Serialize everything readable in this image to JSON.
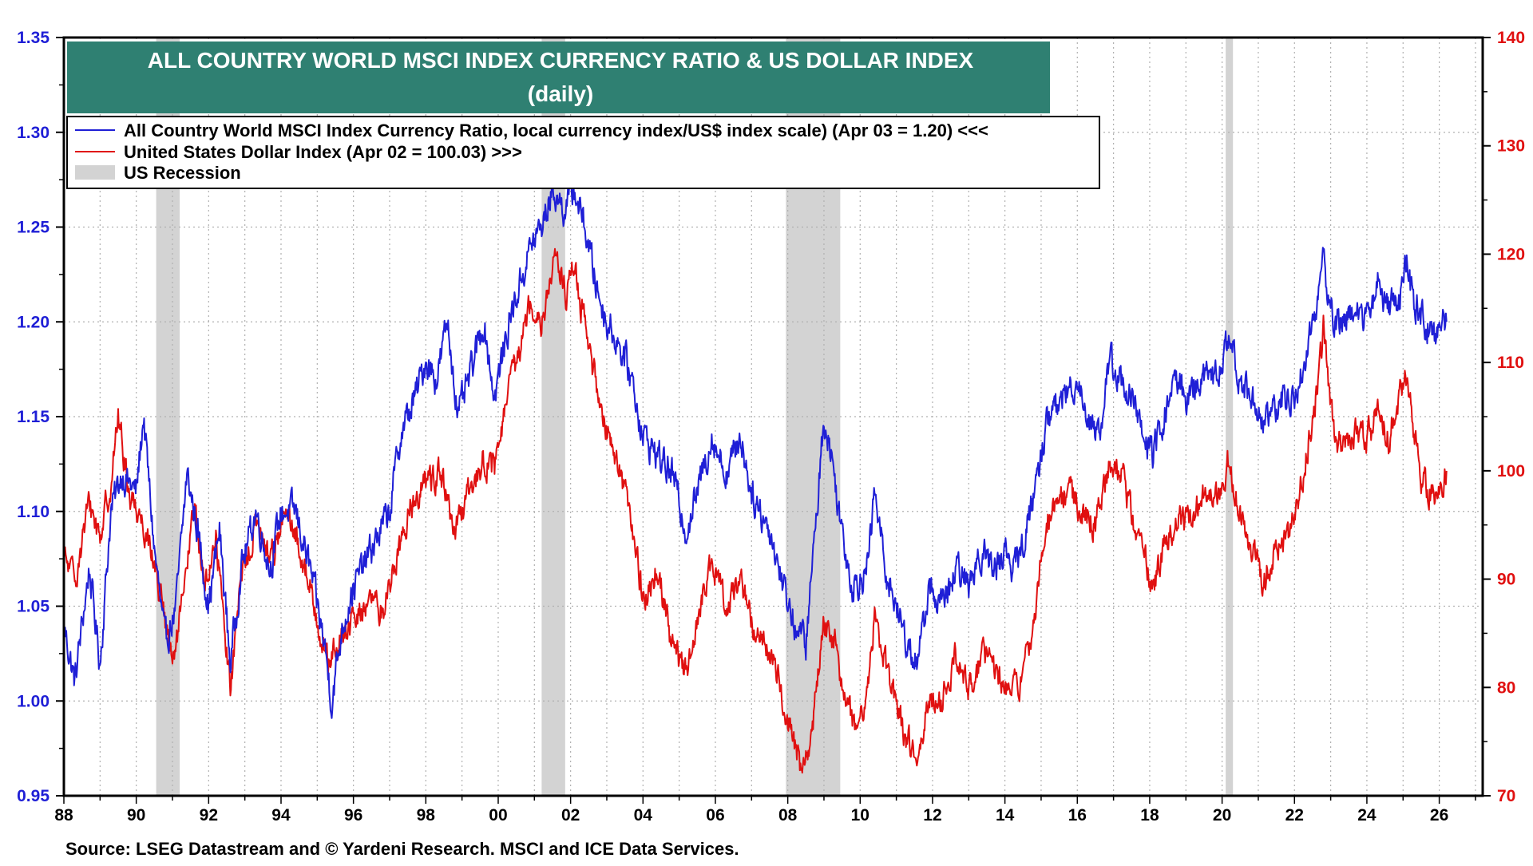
{
  "chart_data": {
    "type": "line",
    "title": "ALL COUNTRY WORLD MSCI INDEX CURRENCY RATIO & US DOLLAR INDEX",
    "subtitle": "(daily)",
    "source": "Source: LSEG Datastream and © Yardeni Research. MSCI and ICE Data Services.",
    "x_range": [
      1988.0,
      2027.2
    ],
    "x_ticks": [
      {
        "value": 1988,
        "label": "88"
      },
      {
        "value": 1990,
        "label": "90"
      },
      {
        "value": 1992,
        "label": "92"
      },
      {
        "value": 1994,
        "label": "94"
      },
      {
        "value": 1996,
        "label": "96"
      },
      {
        "value": 1998,
        "label": "98"
      },
      {
        "value": 2000,
        "label": "00"
      },
      {
        "value": 2002,
        "label": "02"
      },
      {
        "value": 2004,
        "label": "04"
      },
      {
        "value": 2006,
        "label": "06"
      },
      {
        "value": 2008,
        "label": "08"
      },
      {
        "value": 2010,
        "label": "10"
      },
      {
        "value": 2012,
        "label": "12"
      },
      {
        "value": 2014,
        "label": "14"
      },
      {
        "value": 2016,
        "label": "16"
      },
      {
        "value": 2018,
        "label": "18"
      },
      {
        "value": 2020,
        "label": "20"
      },
      {
        "value": 2022,
        "label": "22"
      },
      {
        "value": 2024,
        "label": "24"
      },
      {
        "value": 2026,
        "label": "26"
      }
    ],
    "y_left": {
      "range": [
        0.95,
        1.35
      ],
      "ticks": [
        "0.95",
        "1.00",
        "1.05",
        "1.10",
        "1.15",
        "1.20",
        "1.25",
        "1.30",
        "1.35"
      ],
      "color": "#1f1fd6"
    },
    "y_right": {
      "range": [
        70,
        140
      ],
      "ticks": [
        "70",
        "80",
        "90",
        "100",
        "110",
        "120",
        "130",
        "140"
      ],
      "color": "#e01010"
    },
    "grid": true,
    "legend": {
      "placement": "top-left",
      "entries": [
        {
          "label": "All Country World MSCI Index Currency Ratio, local currency index/US$ index scale) (Apr 03 = 1.20) <<<",
          "kind": "line",
          "color": "#1f1fd6"
        },
        {
          "label": "United States Dollar Index (Apr 02 = 100.03) >>>",
          "kind": "line",
          "color": "#e01010"
        },
        {
          "label": "US Recession",
          "kind": "band",
          "color": "#d3d3d3"
        }
      ]
    },
    "recessions": [
      [
        1990.55,
        1991.2
      ],
      [
        2001.2,
        2001.85
      ],
      [
        2007.95,
        2009.45
      ],
      [
        2020.1,
        2020.3
      ]
    ],
    "series": [
      {
        "name": "All Country World MSCI Index Currency Ratio, local currency index/US$ index scale) (Apr 03 = 1.20) <<<",
        "axis": "left",
        "color": "#1f1fd6",
        "points": [
          [
            1988.0,
            1.04
          ],
          [
            1988.3,
            1.01
          ],
          [
            1988.7,
            1.07
          ],
          [
            1989.0,
            1.02
          ],
          [
            1989.3,
            1.1
          ],
          [
            1989.6,
            1.12
          ],
          [
            1990.0,
            1.11
          ],
          [
            1990.2,
            1.15
          ],
          [
            1990.5,
            1.08
          ],
          [
            1990.8,
            1.03
          ],
          [
            1991.1,
            1.05
          ],
          [
            1991.4,
            1.12
          ],
          [
            1991.7,
            1.09
          ],
          [
            1992.0,
            1.05
          ],
          [
            1992.3,
            1.09
          ],
          [
            1992.6,
            1.02
          ],
          [
            1992.9,
            1.07
          ],
          [
            1993.3,
            1.1
          ],
          [
            1993.7,
            1.07
          ],
          [
            1994.0,
            1.1
          ],
          [
            1994.4,
            1.1
          ],
          [
            1994.8,
            1.07
          ],
          [
            1995.2,
            1.03
          ],
          [
            1995.4,
            1.0
          ],
          [
            1995.7,
            1.04
          ],
          [
            1996.0,
            1.06
          ],
          [
            1996.5,
            1.08
          ],
          [
            1997.0,
            1.1
          ],
          [
            1997.3,
            1.14
          ],
          [
            1997.7,
            1.16
          ],
          [
            1998.0,
            1.18
          ],
          [
            1998.3,
            1.17
          ],
          [
            1998.6,
            1.2
          ],
          [
            1998.9,
            1.15
          ],
          [
            1999.2,
            1.17
          ],
          [
            1999.6,
            1.2
          ],
          [
            1999.9,
            1.16
          ],
          [
            2000.3,
            1.2
          ],
          [
            2000.6,
            1.22
          ],
          [
            2000.9,
            1.24
          ],
          [
            2001.2,
            1.25
          ],
          [
            2001.5,
            1.27
          ],
          [
            2001.8,
            1.26
          ],
          [
            2002.1,
            1.27
          ],
          [
            2002.4,
            1.25
          ],
          [
            2002.7,
            1.22
          ],
          [
            2003.0,
            1.2
          ],
          [
            2003.3,
            1.19
          ],
          [
            2003.7,
            1.17
          ],
          [
            2004.0,
            1.14
          ],
          [
            2004.4,
            1.13
          ],
          [
            2004.8,
            1.12
          ],
          [
            2005.2,
            1.09
          ],
          [
            2005.5,
            1.11
          ],
          [
            2005.9,
            1.14
          ],
          [
            2006.3,
            1.12
          ],
          [
            2006.7,
            1.14
          ],
          [
            2007.0,
            1.11
          ],
          [
            2007.5,
            1.09
          ],
          [
            2007.9,
            1.06
          ],
          [
            2008.2,
            1.04
          ],
          [
            2008.5,
            1.03
          ],
          [
            2008.8,
            1.1
          ],
          [
            2009.0,
            1.15
          ],
          [
            2009.2,
            1.13
          ],
          [
            2009.5,
            1.09
          ],
          [
            2009.8,
            1.06
          ],
          [
            2010.2,
            1.07
          ],
          [
            2010.4,
            1.11
          ],
          [
            2010.7,
            1.07
          ],
          [
            2011.0,
            1.05
          ],
          [
            2011.3,
            1.03
          ],
          [
            2011.6,
            1.02
          ],
          [
            2011.9,
            1.06
          ],
          [
            2012.3,
            1.05
          ],
          [
            2012.7,
            1.07
          ],
          [
            2013.0,
            1.06
          ],
          [
            2013.3,
            1.08
          ],
          [
            2013.7,
            1.07
          ],
          [
            2014.0,
            1.08
          ],
          [
            2014.3,
            1.07
          ],
          [
            2014.6,
            1.09
          ],
          [
            2014.9,
            1.12
          ],
          [
            2015.2,
            1.15
          ],
          [
            2015.6,
            1.16
          ],
          [
            2016.0,
            1.17
          ],
          [
            2016.3,
            1.15
          ],
          [
            2016.6,
            1.14
          ],
          [
            2016.9,
            1.18
          ],
          [
            2017.2,
            1.17
          ],
          [
            2017.5,
            1.16
          ],
          [
            2017.8,
            1.14
          ],
          [
            2018.1,
            1.13
          ],
          [
            2018.4,
            1.15
          ],
          [
            2018.7,
            1.17
          ],
          [
            2019.0,
            1.16
          ],
          [
            2019.4,
            1.17
          ],
          [
            2019.8,
            1.17
          ],
          [
            2020.2,
            1.19
          ],
          [
            2020.5,
            1.17
          ],
          [
            2020.8,
            1.16
          ],
          [
            2021.1,
            1.15
          ],
          [
            2021.4,
            1.15
          ],
          [
            2021.7,
            1.16
          ],
          [
            2022.0,
            1.16
          ],
          [
            2022.3,
            1.18
          ],
          [
            2022.6,
            1.21
          ],
          [
            2022.8,
            1.23
          ],
          [
            2023.1,
            1.2
          ],
          [
            2023.4,
            1.2
          ],
          [
            2023.7,
            1.21
          ],
          [
            2024.0,
            1.2
          ],
          [
            2024.3,
            1.22
          ],
          [
            2024.6,
            1.21
          ],
          [
            2024.9,
            1.21
          ],
          [
            2025.1,
            1.23
          ],
          [
            2025.3,
            1.21
          ],
          [
            2025.6,
            1.2
          ],
          [
            2025.9,
            1.19
          ],
          [
            2026.0,
            1.2
          ],
          [
            2026.2,
            1.2
          ]
        ]
      },
      {
        "name": "United States Dollar Index (Apr 02 = 100.03) >>>",
        "axis": "right",
        "color": "#e01010",
        "points": [
          [
            1988.0,
            92
          ],
          [
            1988.3,
            90
          ],
          [
            1988.7,
            97
          ],
          [
            1989.0,
            94
          ],
          [
            1989.3,
            99
          ],
          [
            1989.5,
            105
          ],
          [
            1989.8,
            98
          ],
          [
            1990.1,
            96
          ],
          [
            1990.4,
            93
          ],
          [
            1990.7,
            88
          ],
          [
            1991.0,
            82
          ],
          [
            1991.3,
            88
          ],
          [
            1991.6,
            97
          ],
          [
            1991.9,
            89
          ],
          [
            1992.2,
            94
          ],
          [
            1992.6,
            80
          ],
          [
            1992.9,
            90
          ],
          [
            1993.3,
            95
          ],
          [
            1993.7,
            92
          ],
          [
            1994.1,
            96
          ],
          [
            1994.5,
            93
          ],
          [
            1994.9,
            88
          ],
          [
            1995.3,
            82
          ],
          [
            1995.6,
            84
          ],
          [
            1996.0,
            86
          ],
          [
            1996.4,
            88
          ],
          [
            1996.8,
            87
          ],
          [
            1997.2,
            92
          ],
          [
            1997.6,
            97
          ],
          [
            1998.0,
            99
          ],
          [
            1998.4,
            100
          ],
          [
            1998.8,
            94
          ],
          [
            1999.2,
            98
          ],
          [
            1999.6,
            101
          ],
          [
            1999.9,
            100
          ],
          [
            2000.2,
            106
          ],
          [
            2000.5,
            110
          ],
          [
            2000.9,
            116
          ],
          [
            2001.2,
            114
          ],
          [
            2001.6,
            120
          ],
          [
            2001.9,
            116
          ],
          [
            2002.1,
            119
          ],
          [
            2002.4,
            113
          ],
          [
            2002.7,
            108
          ],
          [
            2003.0,
            104
          ],
          [
            2003.3,
            101
          ],
          [
            2003.7,
            95
          ],
          [
            2004.0,
            88
          ],
          [
            2004.4,
            91
          ],
          [
            2004.8,
            84
          ],
          [
            2005.2,
            81
          ],
          [
            2005.6,
            88
          ],
          [
            2005.9,
            91
          ],
          [
            2006.3,
            88
          ],
          [
            2006.7,
            90
          ],
          [
            2007.0,
            86
          ],
          [
            2007.4,
            84
          ],
          [
            2007.8,
            80
          ],
          [
            2008.1,
            76
          ],
          [
            2008.4,
            72
          ],
          [
            2008.7,
            77
          ],
          [
            2009.0,
            86
          ],
          [
            2009.3,
            84
          ],
          [
            2009.6,
            79
          ],
          [
            2009.9,
            76
          ],
          [
            2010.2,
            80
          ],
          [
            2010.4,
            87
          ],
          [
            2010.7,
            82
          ],
          [
            2011.0,
            78
          ],
          [
            2011.3,
            75
          ],
          [
            2011.6,
            74
          ],
          [
            2011.9,
            79
          ],
          [
            2012.3,
            79
          ],
          [
            2012.6,
            83
          ],
          [
            2013.0,
            80
          ],
          [
            2013.4,
            83
          ],
          [
            2013.8,
            81
          ],
          [
            2014.2,
            80
          ],
          [
            2014.5,
            81
          ],
          [
            2014.8,
            86
          ],
          [
            2015.1,
            95
          ],
          [
            2015.4,
            97
          ],
          [
            2015.8,
            98
          ],
          [
            2016.2,
            96
          ],
          [
            2016.5,
            95
          ],
          [
            2016.9,
            101
          ],
          [
            2017.2,
            100
          ],
          [
            2017.5,
            96
          ],
          [
            2017.8,
            93
          ],
          [
            2018.1,
            89
          ],
          [
            2018.4,
            93
          ],
          [
            2018.8,
            95
          ],
          [
            2019.2,
            96
          ],
          [
            2019.6,
            98
          ],
          [
            2019.9,
            98
          ],
          [
            2020.2,
            101
          ],
          [
            2020.5,
            96
          ],
          [
            2020.8,
            93
          ],
          [
            2021.1,
            90
          ],
          [
            2021.4,
            92
          ],
          [
            2021.7,
            93
          ],
          [
            2022.0,
            96
          ],
          [
            2022.3,
            101
          ],
          [
            2022.6,
            107
          ],
          [
            2022.8,
            113
          ],
          [
            2023.1,
            103
          ],
          [
            2023.4,
            102
          ],
          [
            2023.7,
            104
          ],
          [
            2024.0,
            103
          ],
          [
            2024.3,
            105
          ],
          [
            2024.6,
            103
          ],
          [
            2024.9,
            107
          ],
          [
            2025.1,
            109
          ],
          [
            2025.3,
            104
          ],
          [
            2025.5,
            99
          ],
          [
            2025.8,
            98
          ],
          [
            2026.0,
            98
          ],
          [
            2026.2,
            100
          ]
        ]
      }
    ]
  }
}
